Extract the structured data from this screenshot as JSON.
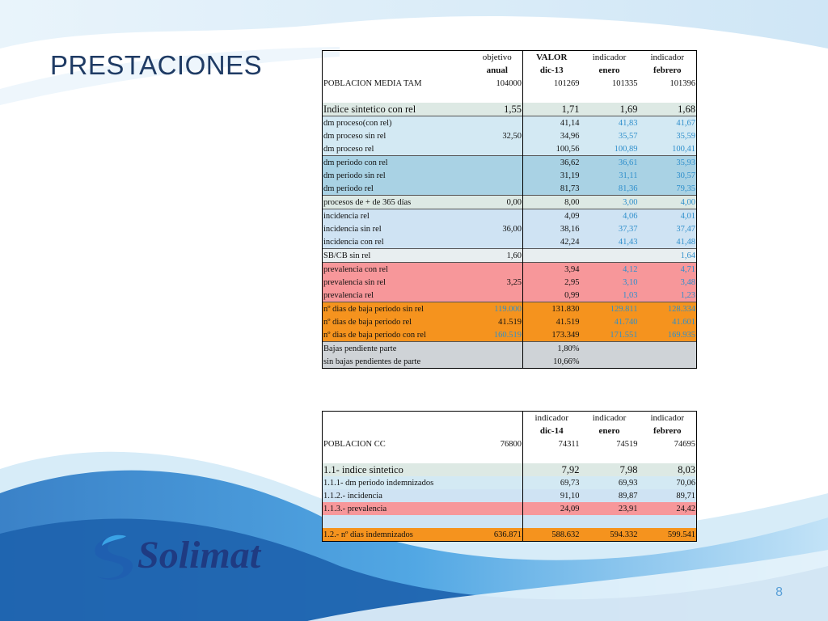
{
  "title": "PRESTACIONES",
  "page_number": "8",
  "logo_text": "Solimat",
  "table1": {
    "header": {
      "col1": [
        "objetivo",
        "anual"
      ],
      "col2": [
        "VALOR",
        "dic-13"
      ],
      "col3": [
        "indicador",
        "enero"
      ],
      "col4": [
        "indicador",
        "febrero"
      ]
    },
    "rows": [
      {
        "label": "POBLACION MEDIA TAM",
        "v": [
          "104000",
          "101269",
          "101335",
          "101396"
        ]
      },
      {
        "label": "",
        "v": [
          "",
          "",
          "",
          ""
        ]
      },
      {
        "label": "Indice sintetico con rel",
        "v": [
          "1,55",
          "1,71",
          "1,69",
          "1,68"
        ]
      },
      {
        "label": "dm proceso(con rel)",
        "v": [
          "",
          "41,14",
          "41,83",
          "41,67"
        ]
      },
      {
        "label": "dm proceso sin rel",
        "v": [
          "32,50",
          "34,96",
          "35,57",
          "35,59"
        ]
      },
      {
        "label": "dm proceso  rel",
        "v": [
          "",
          "100,56",
          "100,89",
          "100,41"
        ]
      },
      {
        "label": " dm periodo con rel",
        "v": [
          "",
          "36,62",
          "36,61",
          "35,93"
        ]
      },
      {
        "label": " dm periodo  sin  rel",
        "v": [
          "",
          "31,19",
          "31,11",
          "30,57"
        ]
      },
      {
        "label": " dm periodo  rel",
        "v": [
          "",
          "81,73",
          "81,36",
          "79,35"
        ]
      },
      {
        "label": "procesos de + de 365  días",
        "v": [
          "0,00",
          "8,00",
          "3,00",
          "4,00"
        ]
      },
      {
        "label": "incidencia  rel",
        "v": [
          "",
          "4,09",
          "4,06",
          "4,01"
        ]
      },
      {
        "label": "incidencia sin rel",
        "v": [
          "36,00",
          "38,16",
          "37,37",
          "37,47"
        ]
      },
      {
        "label": " incidencia con rel",
        "v": [
          "",
          "42,24",
          "41,43",
          "41,48"
        ]
      },
      {
        "label": "SB/CB sin rel",
        "v": [
          "1,60",
          "",
          "",
          "1,64"
        ]
      },
      {
        "label": "prevalencia con rel",
        "v": [
          "",
          "3,94",
          "4,12",
          "4,71"
        ]
      },
      {
        "label": "prevalencia sin rel",
        "v": [
          "3,25",
          "2,95",
          "3,10",
          "3,48"
        ]
      },
      {
        "label": "prevalencia rel",
        "v": [
          "",
          "0,99",
          "1,03",
          "1,23"
        ]
      },
      {
        "label": "nº dias de baja periodo sin rel",
        "v": [
          "119.000",
          "131.830",
          "129.811",
          "128.334"
        ]
      },
      {
        "label": "nº dias de baja periodo  rel",
        "v": [
          "41.519",
          "41.519",
          "41.740",
          "41.601"
        ]
      },
      {
        "label": " nº dias de baja periodo con rel",
        "v": [
          "160.519",
          "173.349",
          "171.551",
          "169.935"
        ]
      },
      {
        "label": "Bajas pendiente parte",
        "v": [
          "",
          "1,80%",
          "",
          ""
        ]
      },
      {
        "label": " sin bajas pendientes de parte",
        "v": [
          "",
          "10,66%",
          "",
          ""
        ]
      }
    ]
  },
  "table2": {
    "header": {
      "col2": [
        "indicador",
        "dic-14"
      ],
      "col3": [
        "indicador",
        "enero"
      ],
      "col4": [
        "indicador",
        "febrero"
      ]
    },
    "rows": [
      {
        "label": "POBLACION CC",
        "v": [
          "76800",
          "74311",
          "74519",
          "74695"
        ]
      },
      {
        "label": "",
        "v": [
          "",
          "",
          "",
          ""
        ]
      },
      {
        "label": "1.1- indice sintetico",
        "v": [
          "",
          "7,92",
          "7,98",
          "8,03"
        ]
      },
      {
        "label": "1.1.1- dm periodo indemnizados",
        "v": [
          "",
          "69,73",
          "69,93",
          "70,06"
        ]
      },
      {
        "label": "1.1.2.- incidencia",
        "v": [
          "",
          "91,10",
          "89,87",
          "89,71"
        ]
      },
      {
        "label": "1.1.3.- prevalencia",
        "v": [
          "",
          "24,09",
          "23,91",
          "24,42"
        ]
      },
      {
        "label": "",
        "v": [
          "",
          "",
          "",
          ""
        ]
      },
      {
        "label": "1.2.- nº dias indemnizados",
        "v": [
          "636.871",
          "588.632",
          "594.332",
          "599.541"
        ]
      }
    ]
  }
}
